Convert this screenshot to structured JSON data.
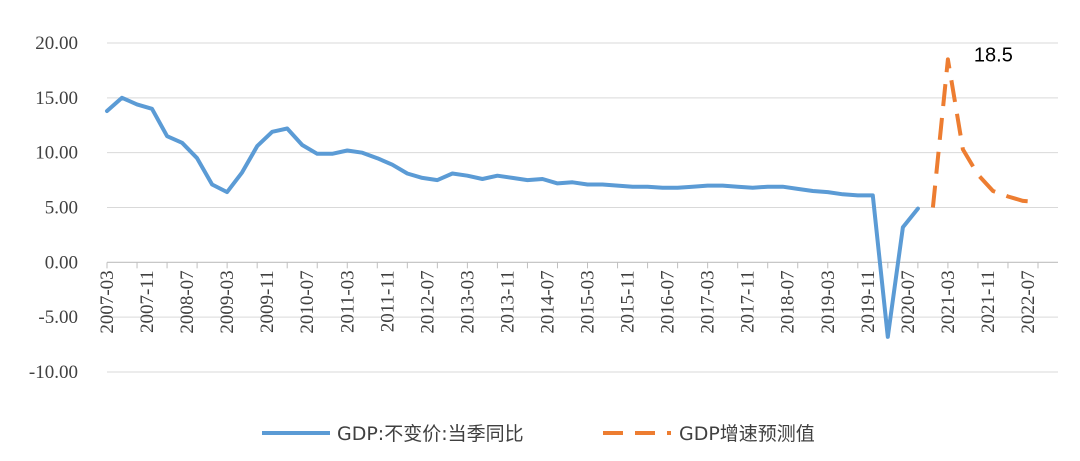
{
  "chart_data": {
    "type": "line",
    "title": "",
    "xlabel": "",
    "ylabel": "",
    "ylim": [
      -10,
      20
    ],
    "yticks": [
      "20.00",
      "15.00",
      "10.00",
      "5.00",
      "0.00",
      "-5.00",
      "-10.00"
    ],
    "grid": true,
    "legend_placement": "bottom",
    "x_tick_labels": [
      "2007-03",
      "2007-11",
      "2008-07",
      "2009-03",
      "2009-11",
      "2010-07",
      "2011-03",
      "2011-11",
      "2012-07",
      "2013-03",
      "2013-11",
      "2014-07",
      "2015-03",
      "2015-11",
      "2016-07",
      "2017-03",
      "2017-11",
      "2018-07",
      "2019-03",
      "2019-11",
      "2020-07",
      "2021-03",
      "2021-11",
      "2022-07"
    ],
    "series": [
      {
        "name": "GDP:不变价:当季同比",
        "color": "#5B9BD5",
        "style": "solid",
        "x": [
          "2007-03",
          "2007-06",
          "2007-09",
          "2007-12",
          "2008-03",
          "2008-06",
          "2008-09",
          "2008-12",
          "2009-03",
          "2009-06",
          "2009-09",
          "2009-12",
          "2010-03",
          "2010-06",
          "2010-09",
          "2010-12",
          "2011-03",
          "2011-06",
          "2011-09",
          "2011-12",
          "2012-03",
          "2012-06",
          "2012-09",
          "2012-12",
          "2013-03",
          "2013-06",
          "2013-09",
          "2013-12",
          "2014-03",
          "2014-06",
          "2014-09",
          "2014-12",
          "2015-03",
          "2015-06",
          "2015-09",
          "2015-12",
          "2016-03",
          "2016-06",
          "2016-09",
          "2016-12",
          "2017-03",
          "2017-06",
          "2017-09",
          "2017-12",
          "2018-03",
          "2018-06",
          "2018-09",
          "2018-12",
          "2019-03",
          "2019-06",
          "2019-09",
          "2019-12",
          "2020-03",
          "2020-06",
          "2020-09"
        ],
        "values": [
          13.8,
          15.0,
          14.4,
          14.0,
          11.5,
          10.9,
          9.5,
          7.1,
          6.4,
          8.2,
          10.6,
          11.9,
          12.2,
          10.7,
          9.9,
          9.9,
          10.2,
          10.0,
          9.5,
          8.9,
          8.1,
          7.7,
          7.5,
          8.1,
          7.9,
          7.6,
          7.9,
          7.7,
          7.5,
          7.6,
          7.2,
          7.3,
          7.1,
          7.1,
          7.0,
          6.9,
          6.9,
          6.8,
          6.8,
          6.9,
          7.0,
          7.0,
          6.9,
          6.8,
          6.9,
          6.9,
          6.7,
          6.5,
          6.4,
          6.2,
          6.1,
          6.1,
          -6.8,
          3.2,
          4.9
        ]
      },
      {
        "name": "GDP增速预测值",
        "color": "#ED7D31",
        "style": "dashed",
        "x": [
          "2020-12",
          "2021-03",
          "2021-06",
          "2021-09",
          "2021-12",
          "2022-03",
          "2022-06",
          "2022-09"
        ],
        "values": [
          5.0,
          18.5,
          10.3,
          8.0,
          6.5,
          6.0,
          5.6,
          5.5
        ]
      }
    ],
    "annotations": [
      {
        "text": "18.5",
        "x": "2021-03",
        "y": 18.5
      }
    ]
  }
}
